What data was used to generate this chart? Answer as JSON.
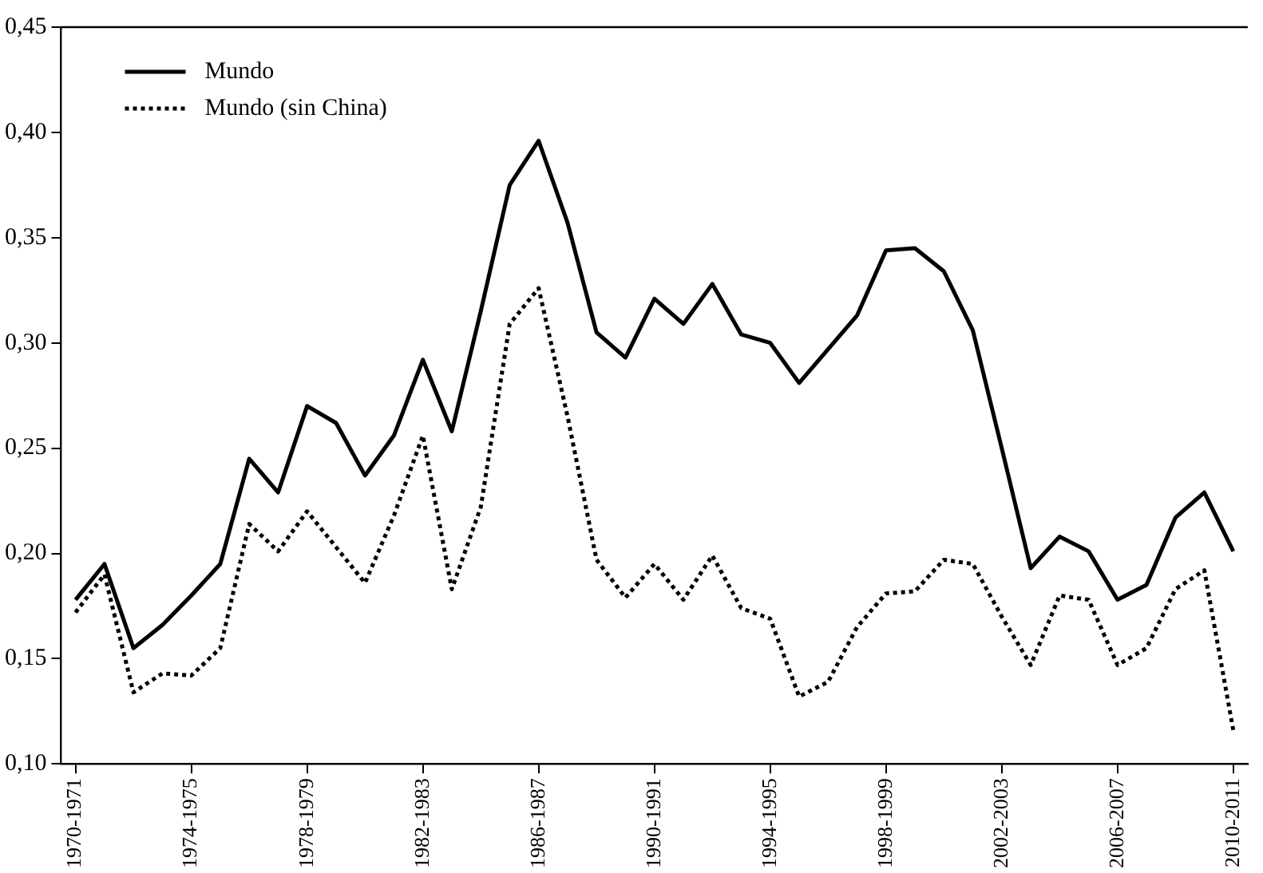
{
  "chart_data": {
    "type": "line",
    "categories": [
      "1970-1971",
      null,
      null,
      null,
      "1974-1975",
      null,
      null,
      null,
      "1978-1979",
      null,
      null,
      null,
      "1982-1983",
      null,
      null,
      null,
      "1986-1987",
      null,
      null,
      null,
      "1990-1991",
      null,
      null,
      null,
      "1994-1995",
      null,
      null,
      null,
      "1998-1999",
      null,
      null,
      null,
      "2002-2003",
      null,
      null,
      null,
      "2006-2007",
      null,
      null,
      null,
      "2010-2011"
    ],
    "series": [
      {
        "name": "Mundo",
        "color": "#000000",
        "line_style": "solid",
        "values": [
          0.178,
          0.195,
          0.155,
          0.166,
          0.18,
          0.195,
          0.245,
          0.229,
          0.27,
          0.262,
          0.237,
          0.256,
          0.292,
          0.258,
          0.315,
          0.375,
          0.396,
          0.357,
          0.305,
          0.293,
          0.321,
          0.309,
          0.328,
          0.304,
          0.3,
          0.281,
          0.297,
          0.313,
          0.344,
          0.345,
          0.334,
          0.306,
          0.25,
          0.193,
          0.208,
          0.201,
          0.178,
          0.185,
          0.217,
          0.229,
          0.201
        ]
      },
      {
        "name": "Mundo (sin China)",
        "color": "#000000",
        "line_style": "dotted",
        "values": [
          0.172,
          0.19,
          0.134,
          0.143,
          0.142,
          0.155,
          0.214,
          0.201,
          0.22,
          0.203,
          0.186,
          0.218,
          0.256,
          0.183,
          0.222,
          0.309,
          0.326,
          0.265,
          0.197,
          0.179,
          0.195,
          0.178,
          0.199,
          0.174,
          0.169,
          0.132,
          0.139,
          0.165,
          0.181,
          0.182,
          0.197,
          0.195,
          0.17,
          0.147,
          0.18,
          0.178,
          0.147,
          0.155,
          0.183,
          0.192,
          0.116
        ]
      }
    ],
    "ylim": [
      0.1,
      0.45
    ],
    "yticks": [
      {
        "value": 0.1,
        "label": "0,10"
      },
      {
        "value": 0.15,
        "label": "0,15"
      },
      {
        "value": 0.2,
        "label": "0,20"
      },
      {
        "value": 0.25,
        "label": "0,25"
      },
      {
        "value": 0.3,
        "label": "0,30"
      },
      {
        "value": 0.35,
        "label": "0,35"
      },
      {
        "value": 0.4,
        "label": "0,40"
      },
      {
        "value": 0.45,
        "label": "0,45"
      }
    ],
    "grid": false,
    "legend": "top left",
    "marker": "none"
  }
}
